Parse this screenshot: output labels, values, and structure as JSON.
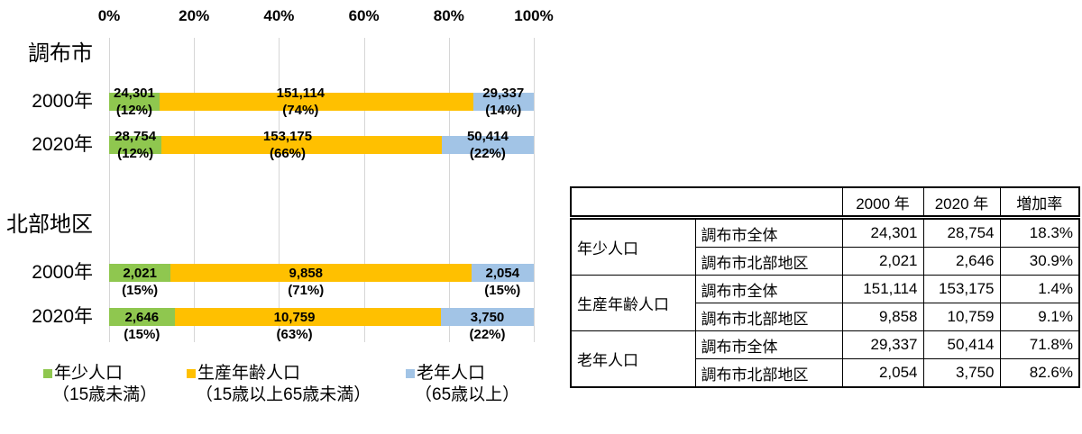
{
  "chart_data": {
    "type": "bar",
    "orientation": "horizontal-stacked-100pct",
    "x_axis": {
      "ticks": [
        "0%",
        "20%",
        "40%",
        "60%",
        "80%",
        "100%"
      ],
      "range": [
        0,
        100
      ],
      "grid": true
    },
    "legend_position": "bottom",
    "series_meta": [
      {
        "key": "young",
        "name": "年少人口",
        "desc": "（15歳未満）",
        "color": "#8FC74F"
      },
      {
        "key": "working",
        "name": "生産年齢人口",
        "desc": "（15歳以上65歳未満）",
        "color": "#FFC000"
      },
      {
        "key": "elderly",
        "name": "老年人口",
        "desc": "（65歳以上）",
        "color": "#A2C4E6"
      }
    ],
    "groups": [
      {
        "title": "調布市",
        "rows": [
          {
            "label": "2000年",
            "values": [
              24301,
              151114,
              29337
            ],
            "value_labels": [
              "24,301",
              "151,114",
              "29,337"
            ],
            "pct_labels": [
              "(12%)",
              "(74%)",
              "(14%)"
            ]
          },
          {
            "label": "2020年",
            "values": [
              28754,
              153175,
              50414
            ],
            "value_labels": [
              "28,754",
              "153,175",
              "50,414"
            ],
            "pct_labels": [
              "(12%)",
              "(66%)",
              "(22%)"
            ]
          }
        ]
      },
      {
        "title": "北部地区",
        "rows": [
          {
            "label": "2000年",
            "values": [
              2021,
              9858,
              2054
            ],
            "value_labels": [
              "2,021",
              "9,858",
              "2,054"
            ],
            "pct_labels": [
              "(15%)",
              "(71%)",
              "(15%)"
            ]
          },
          {
            "label": "2020年",
            "values": [
              2646,
              10759,
              3750
            ],
            "value_labels": [
              "2,646",
              "10,759",
              "3,750"
            ],
            "pct_labels": [
              "(15%)",
              "(63%)",
              "(22%)"
            ]
          }
        ]
      }
    ]
  },
  "table": {
    "headers": [
      "2000 年",
      "2020 年",
      "増加率"
    ],
    "groups": [
      {
        "category": "年少人口",
        "rows": [
          {
            "cells": [
              "調布市全体",
              "24,301",
              "28,754",
              "18.3%"
            ]
          },
          {
            "cells": [
              "調布市北部地区",
              "2,021",
              "2,646",
              "30.9%"
            ]
          }
        ]
      },
      {
        "category": "生産年齢人口",
        "rows": [
          {
            "cells": [
              "調布市全体",
              "151,114",
              "153,175",
              "1.4%"
            ]
          },
          {
            "cells": [
              "調布市北部地区",
              "9,858",
              "10,759",
              "9.1%"
            ]
          }
        ]
      },
      {
        "category": "老年人口",
        "rows": [
          {
            "cells": [
              "調布市全体",
              "29,337",
              "50,414",
              "71.8%"
            ]
          },
          {
            "cells": [
              "調布市北部地区",
              "2,054",
              "3,750",
              "82.6%"
            ]
          }
        ]
      }
    ]
  }
}
